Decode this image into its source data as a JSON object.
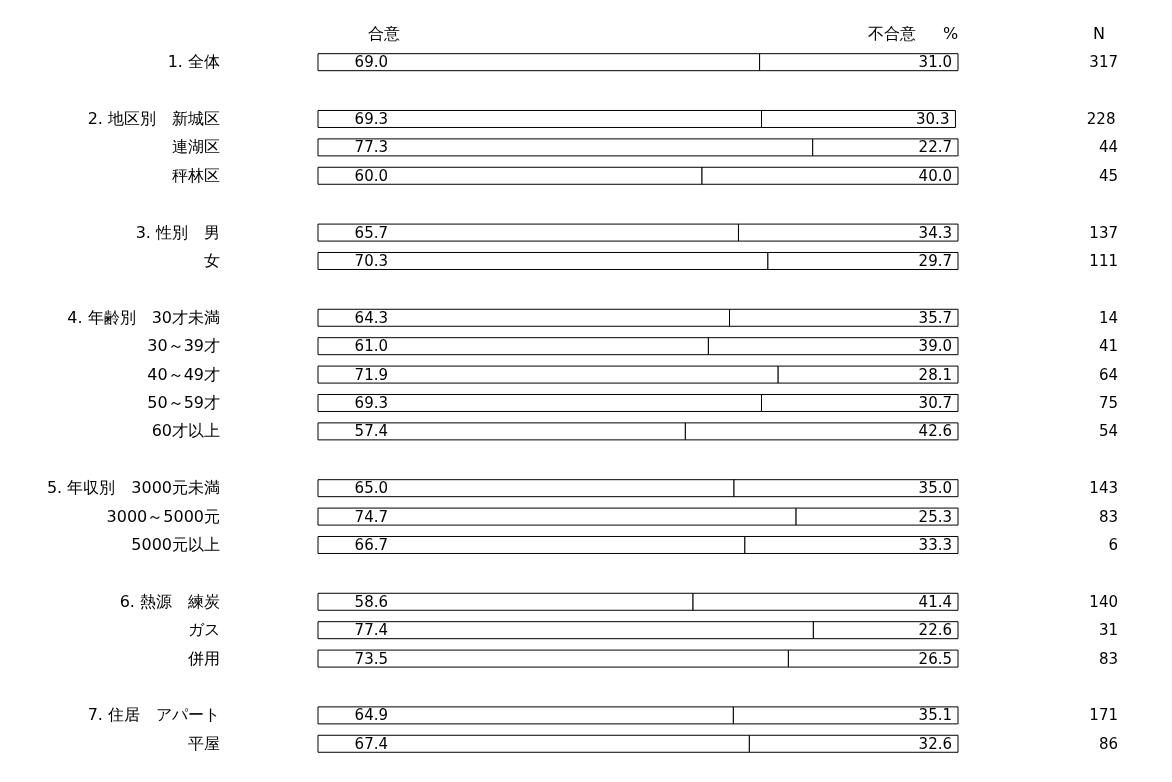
{
  "chart_data": {
    "type": "bar",
    "orientation": "horizontal",
    "stacked": true,
    "legend": "top",
    "categories": [
      "1. 全体",
      null,
      "2. 地区別　新城区",
      "連湖区",
      "秤林区",
      null,
      "3. 性別　男",
      "女",
      null,
      "4. 年齢別　30才未満",
      "30～39才",
      "40～49才",
      "50～59才",
      "60才以上",
      null,
      "5. 年収別　3000元未満",
      "3000～5000元",
      "5000元以上",
      null,
      "6. 熱源　練炭",
      "ガス",
      "併用",
      null,
      "7. 住居　アパート",
      "平屋"
    ],
    "series": [
      {
        "name": "合意",
        "color": "#ffffff",
        "values": [
          69.0,
          null,
          69.3,
          77.3,
          60.0,
          null,
          65.7,
          70.3,
          null,
          64.3,
          61.0,
          71.9,
          69.3,
          57.4,
          null,
          65.0,
          74.7,
          66.7,
          null,
          58.6,
          77.4,
          73.5,
          null,
          64.9,
          67.4
        ],
        "value_labels": [
          "69.0",
          null,
          "69.3",
          "77.3",
          "60.0",
          null,
          "65.7",
          "70.3",
          null,
          "64.3",
          "61.0",
          "71.9",
          "69.3",
          "57.4",
          null,
          "65.0",
          "74.7",
          "66.7",
          null,
          "58.6",
          "77.4",
          "73.5",
          null,
          "64.9",
          "67.4"
        ]
      },
      {
        "name": "不合意",
        "color": "#ffffff",
        "values": [
          31.0,
          null,
          30.3,
          22.7,
          40.0,
          null,
          34.3,
          29.7,
          null,
          35.7,
          39.0,
          28.1,
          30.7,
          42.6,
          null,
          35.0,
          25.3,
          33.3,
          null,
          41.4,
          22.6,
          26.5,
          null,
          35.1,
          32.6
        ],
        "value_labels": [
          "31.0",
          null,
          "30.3",
          "22.7",
          "40.0",
          null,
          "34.3",
          "29.7",
          null,
          "35.7",
          "39.0",
          "28.1",
          "30.7",
          "42.6",
          null,
          "35.0",
          "25.3",
          "33.3",
          null,
          "41.4",
          "22.6",
          "26.5",
          null,
          "35.1",
          "32.6"
        ]
      }
    ],
    "annotations": [
      "%",
      "N",
      "317",
      "228",
      "44",
      "45",
      "137",
      "111",
      "14",
      "41",
      "64",
      "75",
      "54",
      "143",
      "83",
      "6",
      "140",
      "31",
      "83",
      "171",
      "86"
    ]
  }
}
